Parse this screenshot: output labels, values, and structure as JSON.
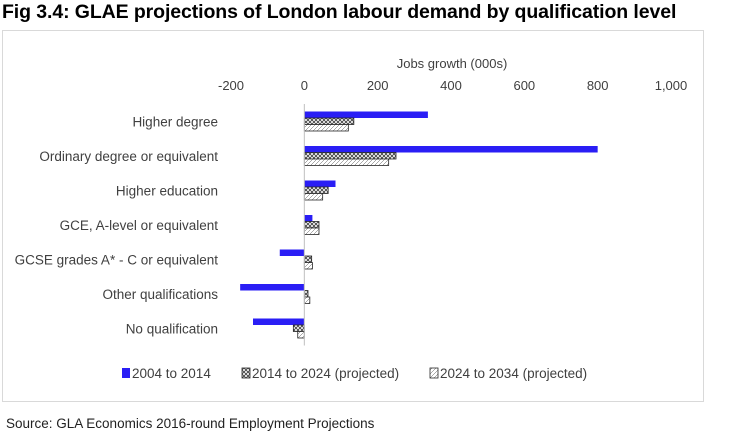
{
  "figure_title": "Fig 3.4: GLAE projections of London labour demand by qualification level",
  "source": "Source: GLA Economics 2016-round Employment Projections",
  "chart_data": {
    "type": "bar",
    "orientation": "horizontal",
    "xlabel": "Jobs growth (000s)",
    "xlim": [
      -200,
      1000
    ],
    "ticks": [
      {
        "value": -200,
        "label": "-200"
      },
      {
        "value": 0,
        "label": "0"
      },
      {
        "value": 200,
        "label": "200"
      },
      {
        "value": 400,
        "label": "400"
      },
      {
        "value": 600,
        "label": "600"
      },
      {
        "value": 800,
        "label": "800"
      },
      {
        "value": 1000,
        "label": "1,000"
      }
    ],
    "grid": false,
    "legend_position": "bottom",
    "categories": [
      "Higher degree",
      "Ordinary degree or equivalent",
      "Higher education",
      "GCE, A-level or equivalent",
      "GCSE grades A* - C or equivalent",
      "Other qualifications",
      "No qualification"
    ],
    "series": [
      {
        "name": "2004 to 2014",
        "color": "#2a1ef5",
        "pattern": "solid",
        "values": [
          337,
          800,
          85,
          22,
          -67,
          -175,
          -140
        ]
      },
      {
        "name": "2014 to 2024 (projected)",
        "color": "#404040",
        "pattern": "crosshatch",
        "values": [
          135,
          250,
          65,
          40,
          20,
          10,
          -30
        ]
      },
      {
        "name": "2024 to 2034 (projected)",
        "color": "#404040",
        "pattern": "hatch",
        "values": [
          120,
          230,
          50,
          40,
          22,
          15,
          -18
        ]
      }
    ]
  }
}
